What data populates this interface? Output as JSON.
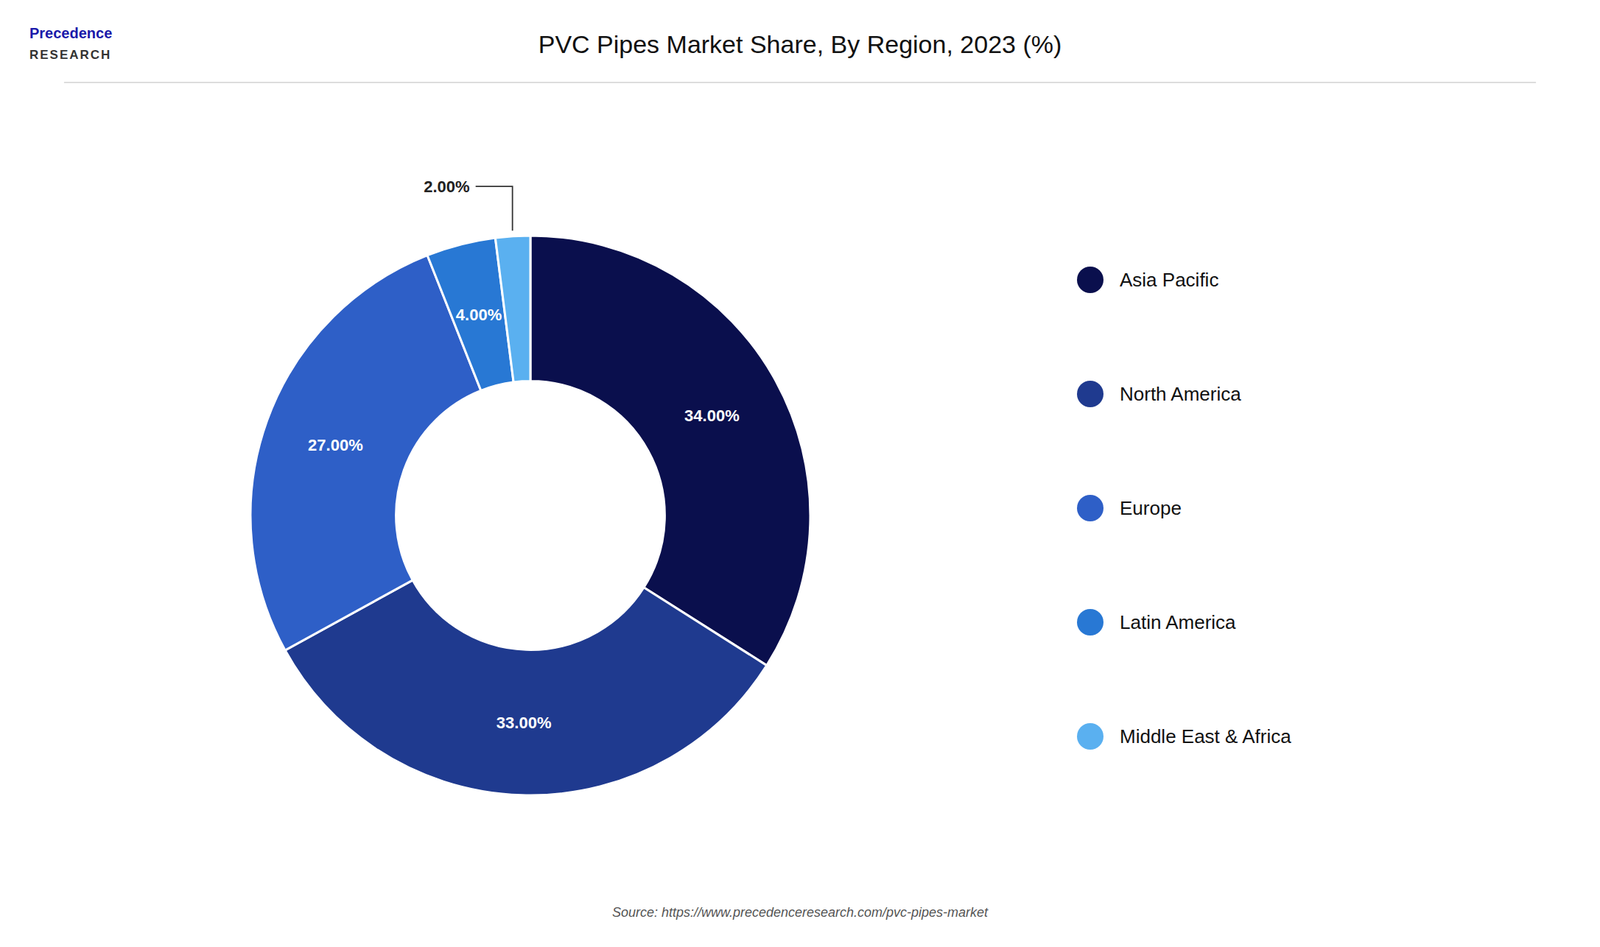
{
  "chart_data": {
    "type": "donut",
    "title": "PVC Pipes Market Share, By Region, 2023 (%)",
    "categories": [
      "Asia Pacific",
      "North America",
      "Europe",
      "Latin America",
      "Middle East & Africa"
    ],
    "values": [
      34.0,
      33.0,
      27.0,
      4.0,
      2.0
    ],
    "value_labels": [
      "34.00%",
      "33.00%",
      "27.00%",
      "4.00%",
      "2.00%"
    ],
    "colors": [
      "#0a0f4d",
      "#1f3a8f",
      "#2e5fc7",
      "#2878d4",
      "#5ab0f0"
    ],
    "data_labels": true,
    "legend": "right",
    "annotations": [
      "Precedence",
      "RESEARCH",
      "Source: https://www.precedenceresearch.com/pvc-pipes-market"
    ]
  }
}
